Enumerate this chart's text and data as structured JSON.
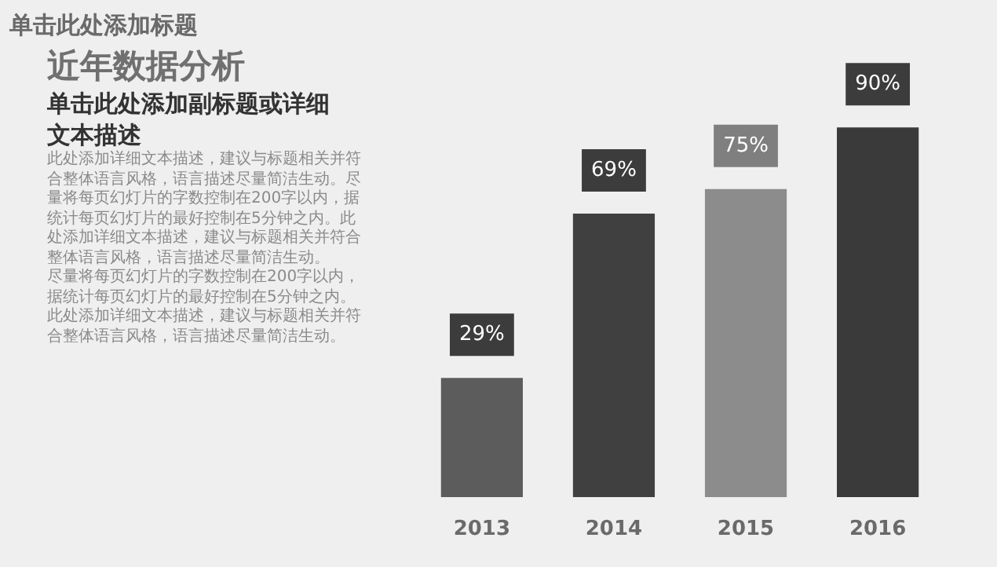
{
  "chart_data": {
    "type": "bar",
    "title": "单击此处添加标题",
    "subtitle": "近年数据分析",
    "annotations": [
      "单击此处添加副标题或详细文本描述",
      "此处添加详细文本描述，建议与标题相关并符合整体语言风格，语言描述尽量简洁生动。尽量将每页幻灯片的字数控制在200字以内，据统计每页幻灯片的最好控制在5分钟之内。此处添加详细文本描述，建议与标题相关并符合整体语言风格，语言描述尽量简洁生动。",
      "尽量将每页幻灯片的字数控制在200字以内，据统计每页幻灯片的最好控制在5分钟之内。此处添加详细文本描述，建议与标题相关并符合整体语言风格，语言描述尽量简洁生动。"
    ],
    "categories": [
      "2013",
      "2014",
      "2015",
      "2016"
    ],
    "values": [
      29,
      69,
      75,
      90
    ],
    "value_labels": [
      "29%",
      "69%",
      "75%",
      "90%"
    ],
    "colors": [
      "#5c5c5c",
      "#404040",
      "#8c8c8c",
      "#3a3a3a"
    ]
  }
}
